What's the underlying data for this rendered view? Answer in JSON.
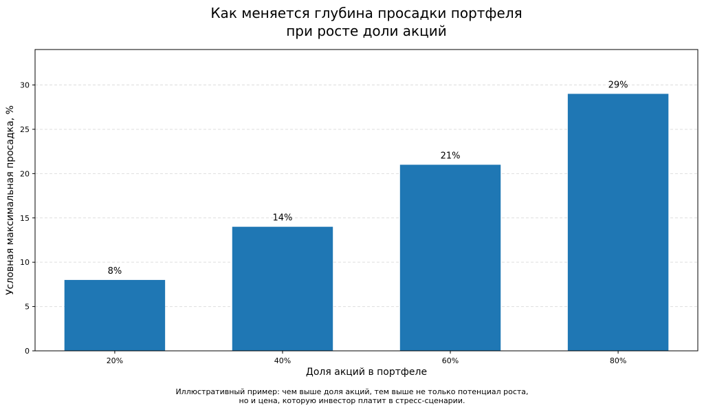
{
  "title_lines": [
    "Как меняется глубина просадки портфеля",
    "при росте доли акций"
  ],
  "footnote_lines": [
    "Иллюстративный пример: чем выше доля акций, тем выше не только потенциал роста,",
    "но и цена, которую инвестор платит в стресс-сценарии."
  ],
  "colors": {
    "bar": "#1f77b4",
    "grid": "#dddddd",
    "axis": "#000000"
  },
  "chart_data": {
    "type": "bar",
    "title": "Как меняется глубина просадки портфеля\nпри росте доли акций",
    "xlabel": "Доля акций в портфеле",
    "ylabel": "Условная максимальная просадка, %",
    "categories": [
      "20%",
      "40%",
      "60%",
      "80%"
    ],
    "values": [
      8,
      14,
      21,
      29
    ],
    "data_labels": [
      "8%",
      "14%",
      "21%",
      "29%"
    ],
    "ylim": [
      0,
      34
    ],
    "yticks": [
      0,
      5,
      10,
      15,
      20,
      25,
      30
    ],
    "grid": "y-dashed",
    "legend": "none"
  }
}
